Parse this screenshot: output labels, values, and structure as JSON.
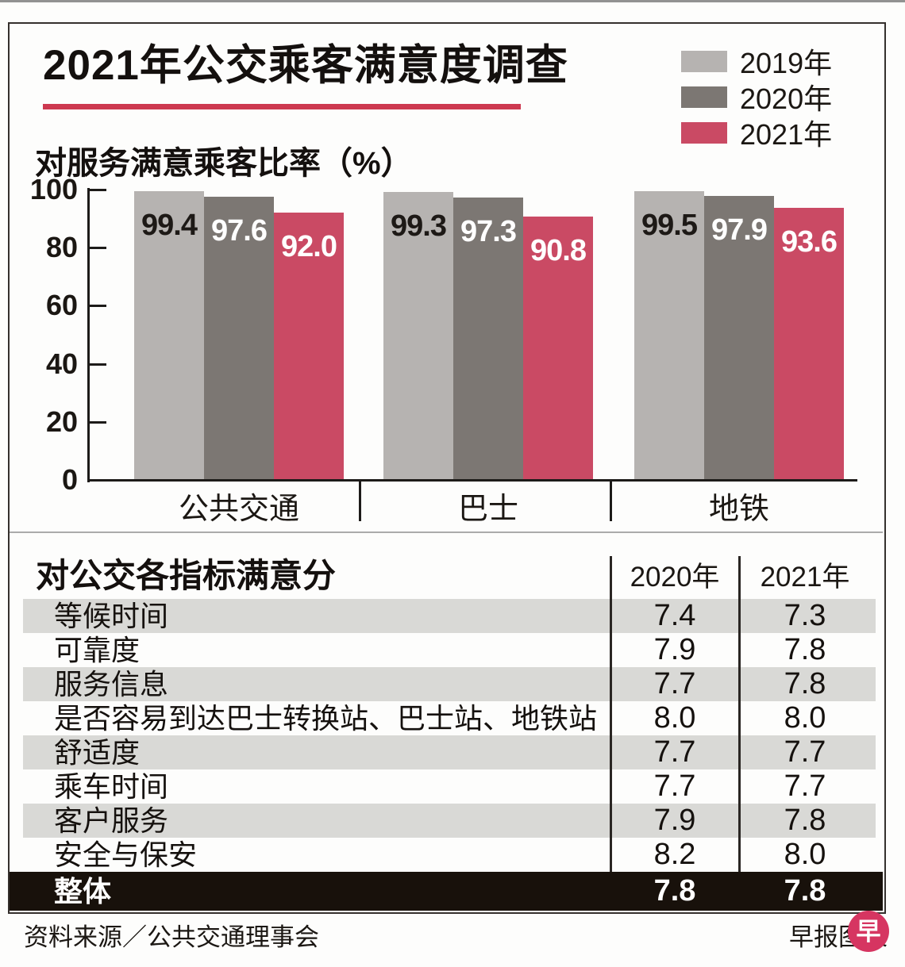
{
  "title": "2021年公交乘客满意度调查",
  "chart_section": {
    "subtitle": "对服务满意乘客比率（%）"
  },
  "chart_data": {
    "type": "bar",
    "title": "2021年公交乘客满意度调查",
    "subtitle": "对服务满意乘客比率（%）",
    "categories": [
      "公共交通",
      "巴士",
      "地铁"
    ],
    "series": [
      {
        "name": "2019年",
        "color": "#b6b3b1",
        "label_color": "#1d1916",
        "values": [
          99.4,
          99.3,
          99.5
        ]
      },
      {
        "name": "2020年",
        "color": "#7c7773",
        "label_color": "#ffffff",
        "values": [
          97.6,
          97.3,
          97.9
        ]
      },
      {
        "name": "2021年",
        "color": "#ca4a64",
        "label_color": "#ffffff",
        "values": [
          92.0,
          90.8,
          93.6
        ]
      }
    ],
    "ylim": [
      0,
      100
    ],
    "yticks": [
      0,
      20,
      40,
      60,
      80,
      100
    ],
    "grid": false,
    "legend_position": "top-right",
    "value_labels": true
  },
  "table": {
    "title": "对公交各指标满意分",
    "columns": [
      "2020年",
      "2021年"
    ],
    "rows": [
      {
        "label": "等候时间",
        "values": [
          "7.4",
          "7.3"
        ]
      },
      {
        "label": "可靠度",
        "values": [
          "7.9",
          "7.8"
        ]
      },
      {
        "label": "服务信息",
        "values": [
          "7.7",
          "7.8"
        ]
      },
      {
        "label": "是否容易到达巴士转换站、巴士站、地铁站",
        "values": [
          "8.0",
          "8.0"
        ]
      },
      {
        "label": "舒适度",
        "values": [
          "7.7",
          "7.7"
        ]
      },
      {
        "label": "乘车时间",
        "values": [
          "7.7",
          "7.7"
        ]
      },
      {
        "label": "客户服务",
        "values": [
          "7.9",
          "7.8"
        ]
      },
      {
        "label": "安全与保安",
        "values": [
          "8.2",
          "8.0"
        ]
      },
      {
        "label": "整体",
        "values": [
          "7.8",
          "7.8"
        ],
        "highlight": true
      }
    ]
  },
  "footer": {
    "source": "资料来源／公共交通理事会",
    "credit": "早报图表",
    "logo_char": "早"
  },
  "colors": {
    "accent_red": "#ca4a64",
    "underline_red": "#cd3950",
    "row_shade": "#d9d9d6",
    "highlight_row_bg": "#18110b"
  }
}
